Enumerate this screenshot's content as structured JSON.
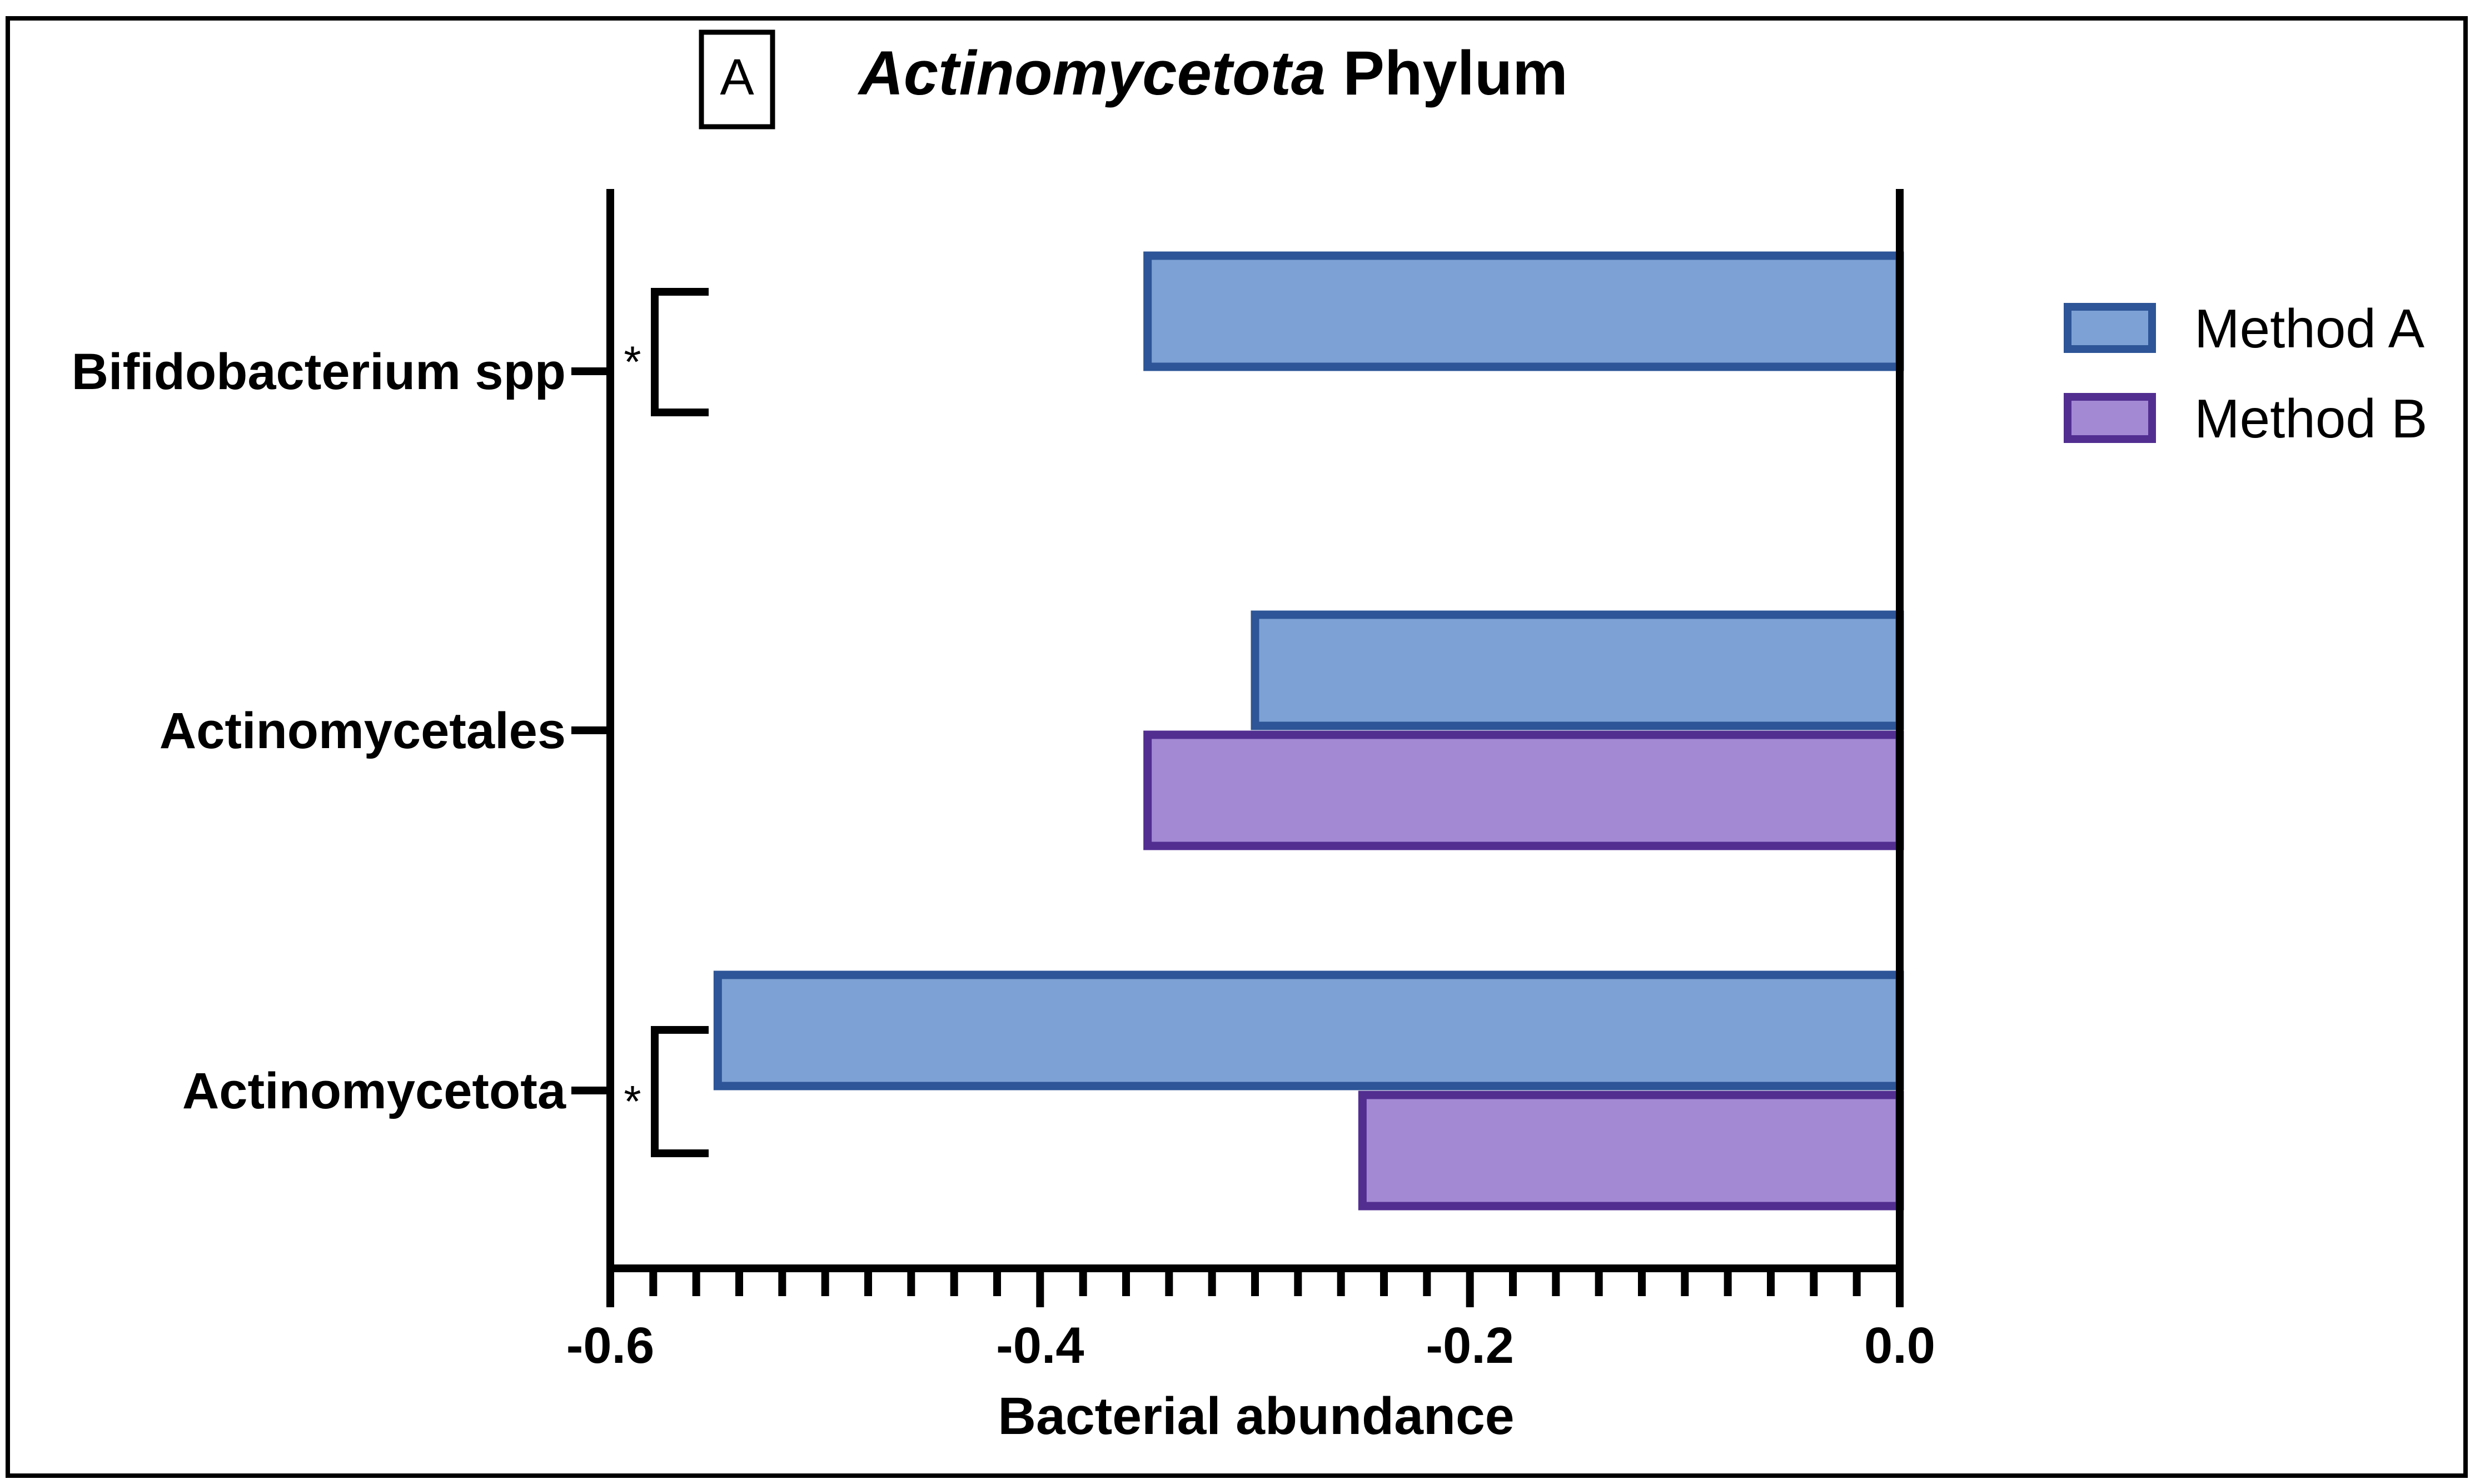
{
  "panel_letter": "A",
  "colors": {
    "method_a_fill": "#7DA1D4",
    "method_a_stroke": "#2D5597",
    "method_b_fill": "#A389D4",
    "method_b_stroke": "#522E91",
    "axis": "#000000"
  },
  "chart_data": {
    "type": "bar",
    "orientation": "horizontal",
    "title_italic": "Actinomycetota",
    "title_rest": " Phylum",
    "xlabel": "Bacterial abundance",
    "ylabel": "",
    "xlim": [
      -0.6,
      0.0
    ],
    "x_ticks": [
      -0.6,
      -0.4,
      -0.2,
      0.0
    ],
    "x_tick_labels": [
      "-0.6",
      "-0.4",
      "-0.2",
      "0.0"
    ],
    "x_minor_step": 0.02,
    "categories": [
      "Bifidobacterium spp",
      "Actinomycetales",
      "Actinomycetota"
    ],
    "series": [
      {
        "name": "Method A",
        "values": [
          -0.35,
          -0.3,
          -0.55
        ]
      },
      {
        "name": "Method B",
        "values": [
          null,
          -0.35,
          -0.25
        ]
      }
    ],
    "significance": [
      {
        "category": "Bifidobacterium spp",
        "label": "*"
      },
      {
        "category": "Actinomycetota",
        "label": "*"
      }
    ],
    "legend_position": "right"
  }
}
